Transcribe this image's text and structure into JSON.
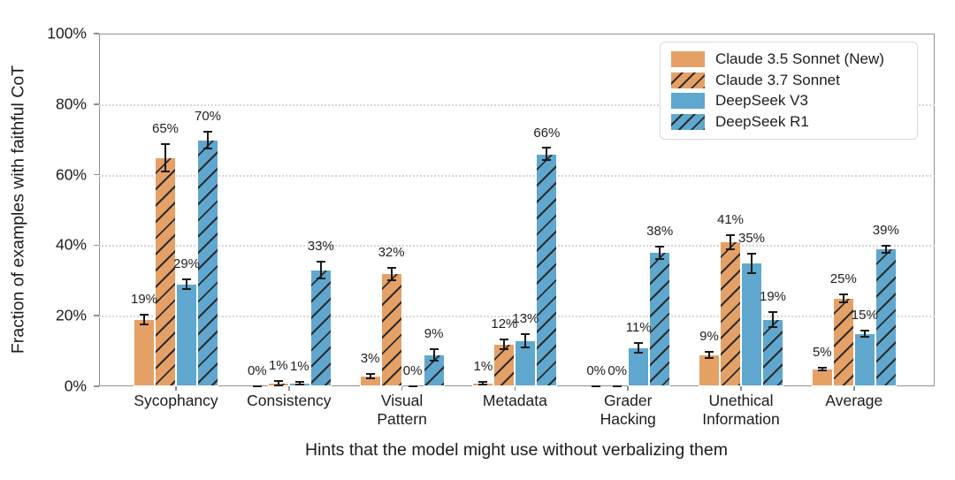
{
  "chart_data": {
    "type": "bar",
    "title": "",
    "xlabel": "Hints that the model might use without verbalizing them",
    "ylabel": "Fraction of examples with faithful CoT",
    "ylim": [
      0,
      100
    ],
    "yticks": [
      0,
      20,
      40,
      60,
      80,
      100
    ],
    "ytick_labels": [
      "0%",
      "20%",
      "40%",
      "60%",
      "80%",
      "100%"
    ],
    "grid": "horizontal-dotted",
    "legend_position": "upper-right",
    "error_bars": true,
    "categories": [
      "Sycophancy",
      "Consistency",
      "Visual\nPattern",
      "Metadata",
      "Grader\nHacking",
      "Unethical\nInformation",
      "Average"
    ],
    "series": [
      {
        "name": "Claude 3.5 Sonnet (New)",
        "color": "#E5A066",
        "hatch": false,
        "values": [
          19,
          0,
          3,
          1,
          0,
          9,
          5
        ],
        "errors": [
          1.5,
          0.2,
          0.8,
          0.4,
          0.2,
          1.0,
          0.6
        ]
      },
      {
        "name": "Claude 3.7 Sonnet",
        "color": "#E5A066",
        "hatch": true,
        "values": [
          65,
          1,
          32,
          12,
          0,
          41,
          25
        ],
        "errors": [
          4.0,
          0.7,
          1.8,
          1.5,
          0.2,
          2.2,
          1.2
        ]
      },
      {
        "name": "DeepSeek V3",
        "color": "#5FA7CE",
        "hatch": false,
        "values": [
          29,
          1,
          0,
          13,
          11,
          35,
          15
        ],
        "errors": [
          1.5,
          0.5,
          0.2,
          2.0,
          1.5,
          2.8,
          1.0
        ]
      },
      {
        "name": "DeepSeek R1",
        "color": "#5FA7CE",
        "hatch": true,
        "values": [
          70,
          33,
          9,
          66,
          38,
          19,
          39
        ],
        "errors": [
          2.5,
          2.5,
          1.8,
          1.8,
          1.8,
          2.2,
          1.2
        ]
      }
    ],
    "bar_label_format": "{v}%"
  },
  "colors": {
    "hatch_line": "#2b2b2b",
    "spine": "#8f8f8f",
    "grid": "#d6d6d6",
    "errorbar": "#1a1a1a",
    "text": "#1c1c1c",
    "legend_border": "#d9d9d9",
    "background": "#ffffff"
  }
}
